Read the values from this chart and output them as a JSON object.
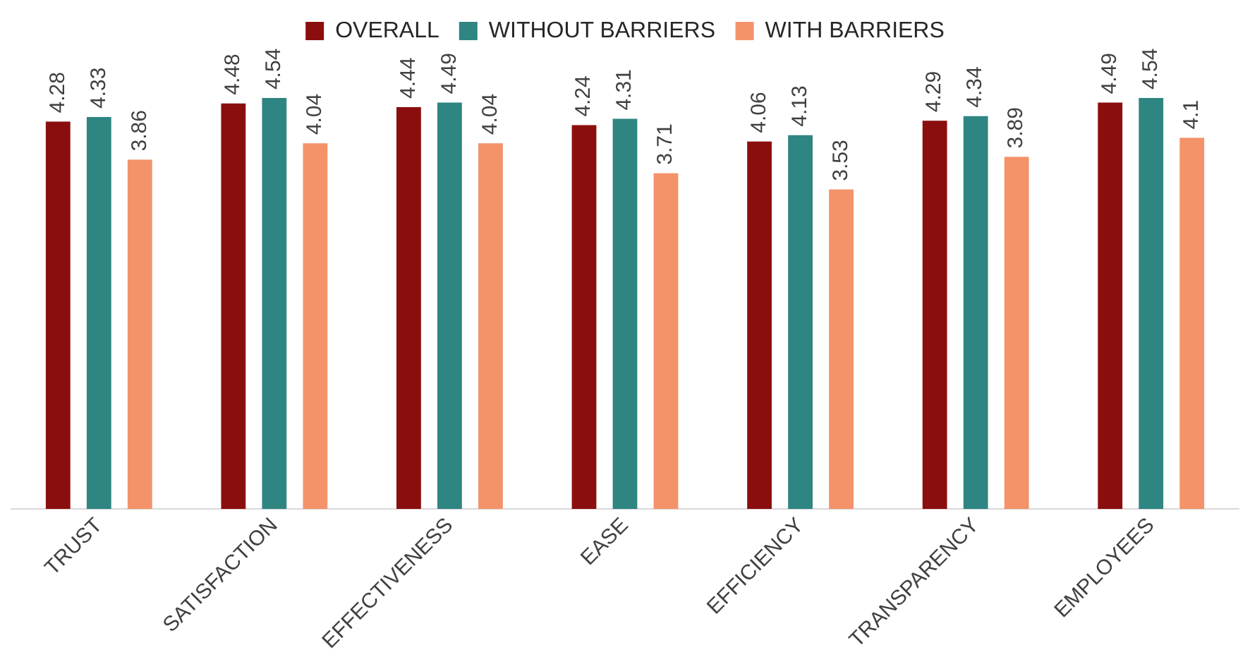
{
  "chart_data": {
    "type": "bar",
    "categories": [
      "TRUST",
      "SATISFACTION",
      "EFFECTIVENESS",
      "EASE",
      "EFFICIENCY",
      "TRANSPARENCY",
      "EMPLOYEES"
    ],
    "series": [
      {
        "name": "OVERALL",
        "color": "#8b0e0e",
        "values": [
          4.28,
          4.48,
          4.44,
          4.24,
          4.06,
          4.29,
          4.49
        ]
      },
      {
        "name": "WITHOUT BARRIERS",
        "color": "#2e8582",
        "values": [
          4.33,
          4.54,
          4.49,
          4.31,
          4.13,
          4.34,
          4.54
        ]
      },
      {
        "name": "WITH BARRIERS",
        "color": "#f4926a",
        "values": [
          3.86,
          4.04,
          4.04,
          3.71,
          3.53,
          3.89,
          4.1
        ]
      }
    ],
    "data_labels": true,
    "grid": false,
    "legend": "top",
    "tick_labels": "x"
  }
}
